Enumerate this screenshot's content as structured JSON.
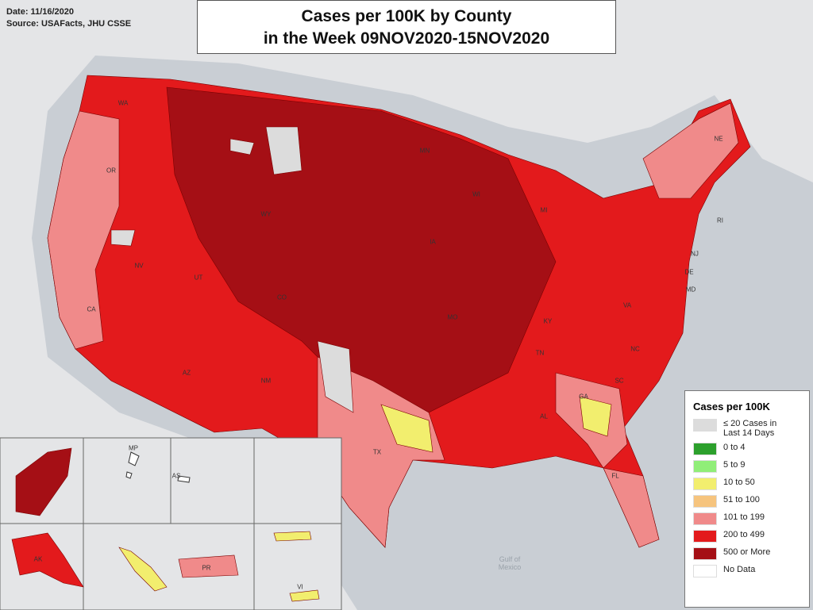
{
  "header": {
    "date": "Date: 11/16/2020",
    "source": "Source: USAFacts, JHU CSSE"
  },
  "title": [
    "Cases per 100K by County",
    "in the Week 09NOV2020-15NOV2020"
  ],
  "legend": {
    "title": "Cases per 100K",
    "items": [
      {
        "label": "≤ 20 Cases in Last 14 Days",
        "color": "#dcdcdc"
      },
      {
        "label": "0 to 4",
        "color": "#2ca02c"
      },
      {
        "label": "5 to 9",
        "color": "#90ee78"
      },
      {
        "label": "10 to 50",
        "color": "#f2ee6e"
      },
      {
        "label": "51 to 100",
        "color": "#f6c47e"
      },
      {
        "label": "101 to 199",
        "color": "#f08a8a"
      },
      {
        "label": "200 to 499",
        "color": "#e31a1c"
      },
      {
        "label": "500 or More",
        "color": "#a50f15"
      },
      {
        "label": "No Data",
        "color": "#ffffff"
      }
    ]
  },
  "state_labels": [
    "WA",
    "OR",
    "CA",
    "NV",
    "WY",
    "UT",
    "CO",
    "AZ",
    "NM",
    "TX",
    "MN",
    "IA",
    "WI",
    "MI",
    "MO",
    "KY",
    "TN",
    "NC",
    "SC",
    "GA",
    "AL",
    "FL",
    "VA",
    "NJ",
    "DE",
    "MD",
    "NE",
    "RI"
  ],
  "inset_labels": [
    "MP",
    "AS",
    "AK",
    "PR",
    "VI"
  ],
  "water_label": "Gulf of Mexico"
}
